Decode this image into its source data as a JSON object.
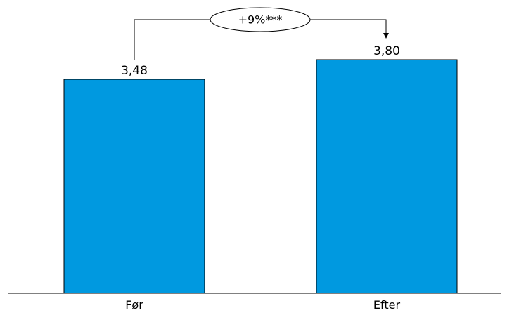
{
  "chart_data": {
    "type": "bar",
    "categories": [
      "Før",
      "Efter"
    ],
    "values": [
      3.48,
      3.8
    ],
    "value_labels": [
      "3,48",
      "3,80"
    ],
    "ylim": [
      0,
      3.8
    ],
    "grid": false,
    "bar_color": "#0099E0",
    "bar_stroke": "#000000",
    "annotation": {
      "type": "change-arrow",
      "from": "Før",
      "to": "Efter",
      "label": "+9%***"
    }
  }
}
